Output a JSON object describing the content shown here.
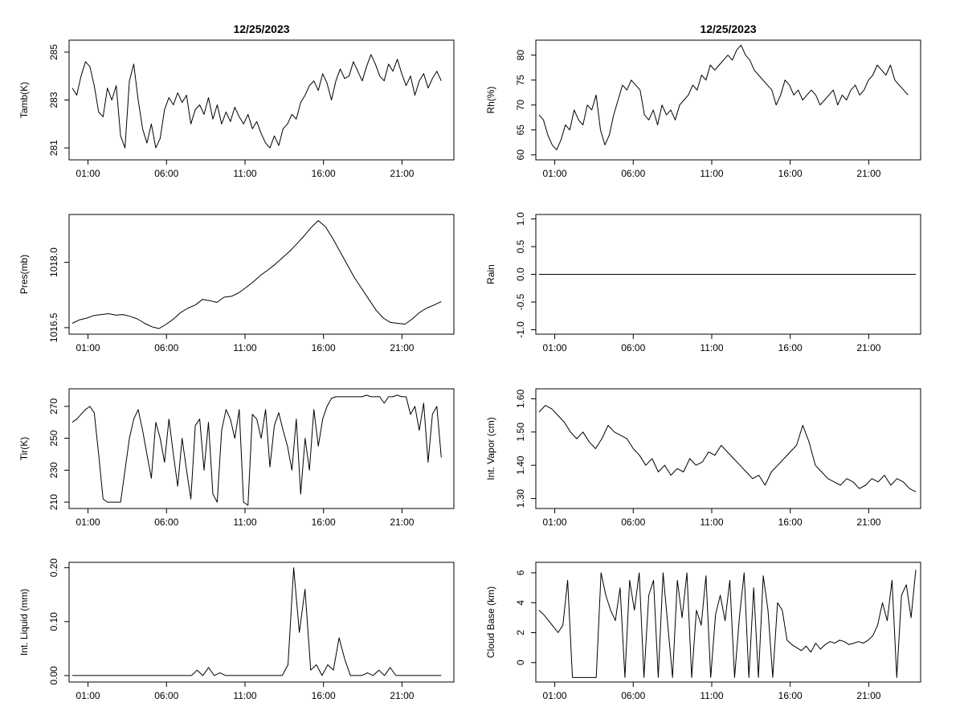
{
  "chart_data": [
    {
      "type": "line",
      "title": "12/25/2023",
      "xlabel": "",
      "ylabel": "Tamb(K)",
      "xticks": [
        "01:00",
        "06:00",
        "11:00",
        "16:00",
        "21:00"
      ],
      "yticks": [
        "281",
        "283",
        "285"
      ],
      "ylim": [
        280.5,
        285.5
      ],
      "x_start": 0.0,
      "x_end": 23.5,
      "series": [
        {
          "values": [
            283.5,
            283.2,
            284.0,
            284.6,
            284.4,
            283.6,
            282.5,
            282.3,
            283.5,
            283.0,
            283.6,
            281.5,
            281.0,
            283.8,
            284.5,
            283.0,
            281.8,
            281.2,
            282.0,
            281.0,
            281.4,
            282.6,
            283.1,
            282.8,
            283.3,
            282.9,
            283.2,
            282.0,
            282.6,
            282.8,
            282.4,
            283.1,
            282.2,
            282.8,
            282.0,
            282.5,
            282.1,
            282.7,
            282.3,
            282.0,
            282.4,
            281.8,
            282.1,
            281.6,
            281.2,
            281.0,
            281.5,
            281.1,
            281.8,
            282.0,
            282.4,
            282.2,
            282.9,
            283.2,
            283.6,
            283.8,
            283.4,
            284.1,
            283.7,
            283.0,
            283.8,
            284.3,
            283.9,
            284.0,
            284.6,
            284.2,
            283.8,
            284.4,
            284.9,
            284.5,
            284.0,
            283.8,
            284.5,
            284.2,
            284.7,
            284.1,
            283.6,
            284.0,
            283.2,
            283.8,
            284.1,
            283.5,
            283.9,
            284.2,
            283.8
          ]
        }
      ]
    },
    {
      "type": "line",
      "title": "12/25/2023",
      "xlabel": "",
      "ylabel": "Rh(%)",
      "xticks": [
        "01:00",
        "06:00",
        "11:00",
        "16:00",
        "21:00"
      ],
      "yticks": [
        "60",
        "65",
        "70",
        "75",
        "80"
      ],
      "ylim": [
        59,
        83
      ],
      "x_start": 0.0,
      "x_end": 23.5,
      "series": [
        {
          "values": [
            68,
            67,
            64,
            62,
            61,
            63,
            66,
            65,
            69,
            67,
            66,
            70,
            69,
            72,
            65,
            62,
            64,
            68,
            71,
            74,
            73,
            75,
            74,
            73,
            68,
            67,
            69,
            66,
            70,
            68,
            69,
            67,
            70,
            71,
            72,
            74,
            73,
            76,
            75,
            78,
            77,
            78,
            79,
            80,
            79,
            81,
            82,
            80,
            79,
            77,
            76,
            75,
            74,
            73,
            70,
            72,
            75,
            74,
            72,
            73,
            71,
            72,
            73,
            72,
            70,
            71,
            72,
            73,
            70,
            72,
            71,
            73,
            74,
            72,
            73,
            75,
            76,
            78,
            77,
            76,
            78,
            75,
            74,
            73,
            72
          ]
        }
      ]
    },
    {
      "type": "line",
      "title": "",
      "xlabel": "",
      "ylabel": "Pres(mb)",
      "xticks": [
        "01:00",
        "06:00",
        "11:00",
        "16:00",
        "21:00"
      ],
      "yticks": [
        "1016.5",
        "1018.0"
      ],
      "ylim": [
        1016.35,
        1019.1
      ],
      "x_start": 0.0,
      "x_end": 23.5,
      "series": [
        {
          "values": [
            1016.6,
            1016.68,
            1016.72,
            1016.78,
            1016.8,
            1016.82,
            1016.79,
            1016.8,
            1016.76,
            1016.7,
            1016.6,
            1016.52,
            1016.48,
            1016.58,
            1016.7,
            1016.85,
            1016.95,
            1017.02,
            1017.15,
            1017.12,
            1017.08,
            1017.2,
            1017.22,
            1017.3,
            1017.42,
            1017.55,
            1017.7,
            1017.82,
            1017.95,
            1018.1,
            1018.25,
            1018.42,
            1018.6,
            1018.8,
            1018.96,
            1018.82,
            1018.55,
            1018.25,
            1017.95,
            1017.65,
            1017.4,
            1017.15,
            1016.9,
            1016.72,
            1016.62,
            1016.6,
            1016.58,
            1016.7,
            1016.85,
            1016.95,
            1017.02,
            1017.1
          ]
        }
      ]
    },
    {
      "type": "line",
      "title": "",
      "xlabel": "",
      "ylabel": "Rain",
      "xticks": [
        "01:00",
        "06:00",
        "11:00",
        "16:00",
        "21:00"
      ],
      "yticks": [
        "-1.0",
        "-0.5",
        "0.0",
        "0.5",
        "1.0"
      ],
      "ylim": [
        -1.08,
        1.08
      ],
      "x_start": 0.0,
      "x_end": 24.0,
      "series": [
        {
          "values": [
            0,
            0
          ]
        }
      ]
    },
    {
      "type": "line",
      "title": "",
      "xlabel": "",
      "ylabel": "Tir(K)",
      "xticks": [
        "01:00",
        "06:00",
        "11:00",
        "16:00",
        "21:00"
      ],
      "yticks": [
        "210",
        "230",
        "250",
        "270"
      ],
      "ylim": [
        206,
        281
      ],
      "x_start": 0.0,
      "x_end": 23.5,
      "series": [
        {
          "values": [
            260,
            262,
            265,
            268,
            270,
            266,
            240,
            212,
            210,
            210,
            210,
            210,
            230,
            250,
            262,
            268,
            255,
            240,
            225,
            260,
            250,
            235,
            262,
            240,
            220,
            250,
            230,
            212,
            258,
            262,
            230,
            260,
            215,
            210,
            255,
            268,
            262,
            250,
            268,
            210,
            208,
            265,
            262,
            250,
            268,
            232,
            258,
            266,
            255,
            245,
            230,
            262,
            215,
            250,
            230,
            268,
            245,
            262,
            270,
            275,
            276,
            276,
            276,
            276,
            276,
            276,
            276,
            277,
            276,
            276,
            276,
            272,
            276,
            276,
            277,
            276,
            276,
            265,
            270,
            255,
            272,
            235,
            265,
            270,
            238
          ]
        }
      ]
    },
    {
      "type": "line",
      "title": "",
      "xlabel": "",
      "ylabel": "Int. Vapor (cm)",
      "xticks": [
        "01:00",
        "06:00",
        "11:00",
        "16:00",
        "21:00"
      ],
      "yticks": [
        "1.30",
        "1.40",
        "1.50",
        "1.60"
      ],
      "ylim": [
        1.27,
        1.63
      ],
      "x_start": 0.0,
      "x_end": 24.0,
      "series": [
        {
          "values": [
            1.56,
            1.58,
            1.57,
            1.55,
            1.53,
            1.5,
            1.48,
            1.5,
            1.47,
            1.45,
            1.48,
            1.52,
            1.5,
            1.49,
            1.48,
            1.45,
            1.43,
            1.4,
            1.42,
            1.38,
            1.4,
            1.37,
            1.39,
            1.38,
            1.42,
            1.4,
            1.41,
            1.44,
            1.43,
            1.46,
            1.44,
            1.42,
            1.4,
            1.38,
            1.36,
            1.37,
            1.34,
            1.38,
            1.4,
            1.42,
            1.44,
            1.46,
            1.52,
            1.47,
            1.4,
            1.38,
            1.36,
            1.35,
            1.34,
            1.36,
            1.35,
            1.33,
            1.34,
            1.36,
            1.35,
            1.37,
            1.34,
            1.36,
            1.35,
            1.33,
            1.32
          ]
        }
      ]
    },
    {
      "type": "line",
      "title": "",
      "xlabel": "",
      "ylabel": "Int. Liquid (mm)",
      "xticks": [
        "01:00",
        "06:00",
        "11:00",
        "16:00",
        "21:00"
      ],
      "yticks": [
        "0.00",
        "0.10",
        "0.20"
      ],
      "ylim": [
        -0.012,
        0.21
      ],
      "x_start": 0.0,
      "x_end": 23.5,
      "series": [
        {
          "values": [
            0,
            0,
            0,
            0,
            0,
            0,
            0,
            0,
            0,
            0,
            0,
            0,
            0,
            0,
            0,
            0,
            0,
            0,
            0,
            0,
            0,
            0,
            0.01,
            0.0,
            0.015,
            0.0,
            0.005,
            0,
            0,
            0,
            0,
            0,
            0,
            0,
            0,
            0,
            0,
            0,
            0.02,
            0.2,
            0.08,
            0.16,
            0.01,
            0.02,
            0.0,
            0.02,
            0.01,
            0.07,
            0.03,
            0.0,
            0,
            0,
            0.005,
            0.0,
            0.01,
            0.0,
            0.015,
            0,
            0,
            0,
            0,
            0,
            0,
            0,
            0,
            0
          ]
        }
      ]
    },
    {
      "type": "line",
      "title": "",
      "xlabel": "",
      "ylabel": "Cloud Base (km)",
      "xticks": [
        "01:00",
        "06:00",
        "11:00",
        "16:00",
        "21:00"
      ],
      "yticks": [
        "0",
        "2",
        "4",
        "6"
      ],
      "ylim": [
        -1.3,
        6.7
      ],
      "x_start": 0.0,
      "x_end": 24.0,
      "series": [
        {
          "values": [
            3.5,
            3.2,
            2.8,
            2.4,
            2.0,
            2.5,
            5.5,
            -1,
            -1,
            -1,
            -1,
            -1,
            -1,
            6.0,
            4.5,
            3.5,
            2.8,
            5.0,
            -1,
            5.5,
            3.5,
            6.0,
            -1,
            4.5,
            5.5,
            -1,
            6.0,
            2.5,
            -1,
            5.5,
            3.0,
            6.0,
            -1,
            3.5,
            2.5,
            5.8,
            -1,
            3.2,
            4.5,
            2.8,
            5.5,
            -1,
            3.0,
            6.0,
            -1,
            5.0,
            -1,
            5.8,
            3.5,
            -1,
            4.0,
            3.5,
            1.5,
            1.2,
            1.0,
            0.8,
            1.1,
            0.7,
            1.3,
            0.9,
            1.2,
            1.4,
            1.3,
            1.5,
            1.4,
            1.2,
            1.3,
            1.4,
            1.3,
            1.5,
            1.8,
            2.5,
            4.0,
            2.8,
            5.5,
            -1,
            4.5,
            5.2,
            3.0,
            6.2
          ]
        }
      ]
    }
  ]
}
